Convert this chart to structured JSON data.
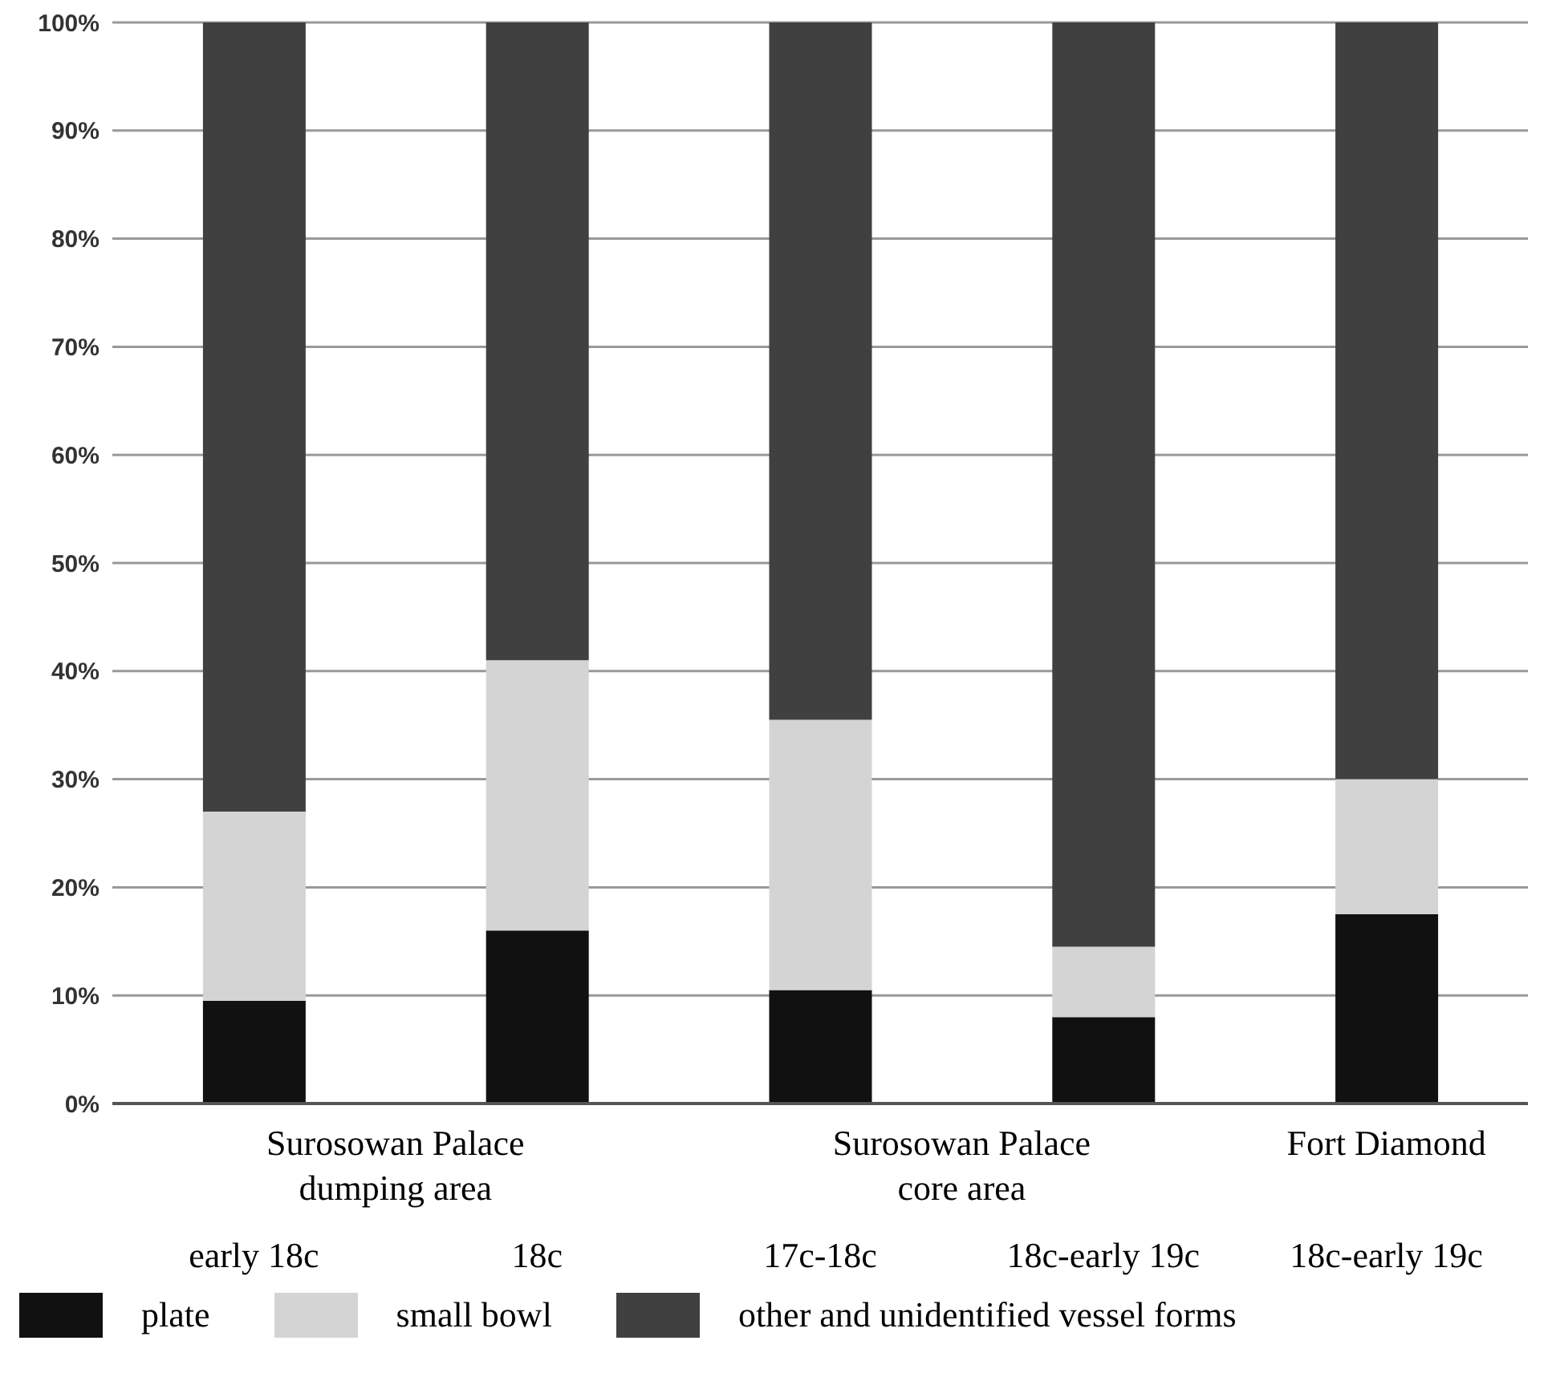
{
  "chart_data": {
    "type": "bar",
    "stacked": true,
    "categories": [
      "early 18c",
      "18c",
      "17c-18c",
      "18c-early 19c",
      "18c-early 19c"
    ],
    "series": [
      {
        "name": "plate",
        "color": "#111111",
        "values": [
          9.5,
          16,
          10.5,
          8,
          17.5
        ]
      },
      {
        "name": "small bowl",
        "color": "#d4d4d4",
        "values": [
          17.5,
          25,
          25,
          6.5,
          12.5
        ]
      },
      {
        "name": "other and unidentified vessel forms",
        "color": "#404040",
        "values": [
          73,
          59,
          64.5,
          85.5,
          70
        ]
      }
    ],
    "ylim": [
      0,
      100
    ],
    "yticks": [
      {
        "value": 0,
        "label": "0%"
      },
      {
        "value": 10,
        "label": "10%"
      },
      {
        "value": 20,
        "label": "20%"
      },
      {
        "value": 30,
        "label": "30%"
      },
      {
        "value": 40,
        "label": "40%"
      },
      {
        "value": 50,
        "label": "50%"
      },
      {
        "value": 60,
        "label": "60%"
      },
      {
        "value": 70,
        "label": "70%"
      },
      {
        "value": 80,
        "label": "80%"
      },
      {
        "value": 90,
        "label": "90%"
      },
      {
        "value": 100,
        "label": "100%"
      }
    ],
    "annotations": [
      "Surosowan Palace\ndumping area",
      "Surosowan Palace\ncore area",
      "Fort Diamond"
    ],
    "grid": "y",
    "legend": "bottom"
  }
}
